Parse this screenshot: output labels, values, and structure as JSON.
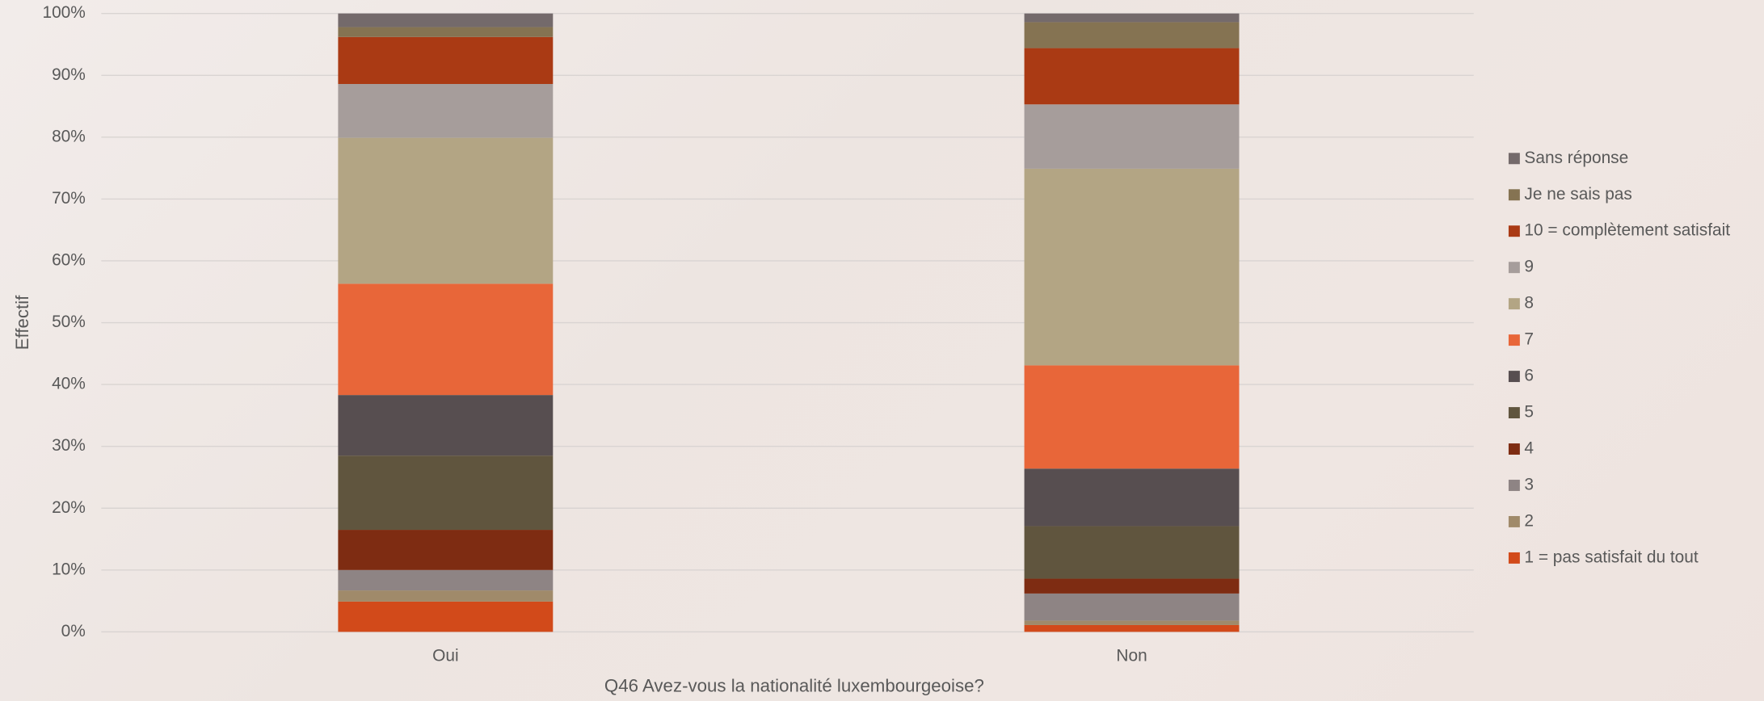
{
  "chart_data": {
    "type": "stacked-bar",
    "x_label": "Q46 Avez-vous la nationalité luxembourgeoise?",
    "y_label": "Effectif",
    "categories": [
      "Oui",
      "Non"
    ],
    "series": [
      {
        "name": "1 = pas satisfait du tout",
        "color": "#d24a1a",
        "values": [
          4.9,
          1.1
        ]
      },
      {
        "name": "2",
        "color": "#a08a6a",
        "values": [
          1.8,
          0.7
        ]
      },
      {
        "name": "3",
        "color": "#8e8484",
        "values": [
          3.3,
          4.4
        ]
      },
      {
        "name": "4",
        "color": "#7e2c12",
        "values": [
          6.5,
          2.4
        ]
      },
      {
        "name": "5",
        "color": "#60553e",
        "values": [
          12,
          8.5
        ]
      },
      {
        "name": "6",
        "color": "#574e50",
        "values": [
          9.8,
          9.3
        ]
      },
      {
        "name": "7",
        "color": "#e86639",
        "values": [
          18,
          16.7
        ]
      },
      {
        "name": "8",
        "color": "#b3a584",
        "values": [
          23.6,
          31.8
        ]
      },
      {
        "name": "9",
        "color": "#a69d9b",
        "values": [
          8.7,
          10.4
        ]
      },
      {
        "name": "10 = complètement satisfait",
        "color": "#aa3a14",
        "values": [
          7.6,
          9.1
        ]
      },
      {
        "name": "Je ne sais pas",
        "color": "#857352",
        "values": [
          1.6,
          4.2
        ]
      },
      {
        "name": "Sans réponse",
        "color": "#746a6b",
        "values": [
          2.2,
          1.4
        ]
      }
    ],
    "ylim": [
      0,
      100
    ],
    "yticks": [
      {
        "value": 0,
        "label": "0%"
      },
      {
        "value": 10,
        "label": "10%"
      },
      {
        "value": 20,
        "label": "20%"
      },
      {
        "value": 30,
        "label": "30%"
      },
      {
        "value": 40,
        "label": "40%"
      },
      {
        "value": 50,
        "label": "50%"
      },
      {
        "value": 60,
        "label": "60%"
      },
      {
        "value": 70,
        "label": "70%"
      },
      {
        "value": 80,
        "label": "80%"
      },
      {
        "value": 90,
        "label": "90%"
      },
      {
        "value": 100,
        "label": "100%"
      }
    ],
    "grid": true,
    "legend": "right"
  }
}
